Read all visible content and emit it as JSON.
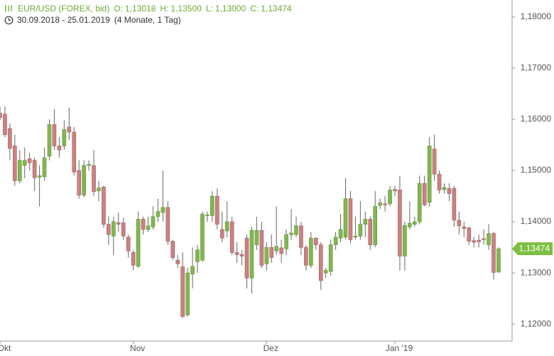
{
  "chart_data": {
    "type": "candlestick",
    "title": "EUR/USD (FOREX, bid)",
    "quote": [
      {
        "label": "O:",
        "value": "1,13018"
      },
      {
        "label": "H:",
        "value": "1,13500"
      },
      {
        "label": "L:",
        "value": "1,13000"
      },
      {
        "label": "C:",
        "value": "1,13474"
      }
    ],
    "period": "30.09.2018 - 25.01.2019",
    "duration": "(4 Monate, 1 Tag)",
    "last_value_label": "1,13474",
    "up_color": "#82b651",
    "down_color": "#c98282",
    "ylim": [
      1.1167,
      1.1833
    ],
    "yticks": [
      {
        "value": 1.12,
        "label": "1,12000"
      },
      {
        "value": 1.13,
        "label": "1,13000"
      },
      {
        "value": 1.14,
        "label": "1,14000"
      },
      {
        "value": 1.15,
        "label": "1,15000"
      },
      {
        "value": 1.16,
        "label": "1,16000"
      },
      {
        "value": 1.17,
        "label": "1,17000"
      },
      {
        "value": 1.18,
        "label": "1,18000"
      }
    ],
    "grid": false,
    "categories": [
      "Okt",
      null,
      null,
      null,
      null,
      null,
      null,
      null,
      null,
      null,
      null,
      null,
      null,
      null,
      null,
      null,
      null,
      null,
      null,
      null,
      null,
      null,
      null,
      null,
      null,
      null,
      null,
      "Nov",
      null,
      null,
      null,
      null,
      null,
      null,
      null,
      null,
      null,
      null,
      null,
      null,
      null,
      null,
      null,
      null,
      null,
      null,
      null,
      null,
      null,
      null,
      null,
      null,
      null,
      null,
      "Dez",
      null,
      null,
      null,
      null,
      null,
      null,
      null,
      null,
      null,
      null,
      null,
      null,
      null,
      null,
      null,
      null,
      null,
      null,
      null,
      null,
      null,
      null,
      null,
      null,
      null,
      "Jan '19",
      null,
      null,
      null,
      null,
      null,
      null,
      null,
      null,
      null,
      null,
      null,
      null,
      null,
      null,
      null,
      null,
      null,
      null,
      null,
      null,
      null
    ],
    "open": [
      1.1612,
      1.161,
      1.1582,
      1.1548,
      1.148,
      1.151,
      1.1523,
      1.152,
      1.1487,
      1.1488,
      1.1528,
      1.159,
      1.1548,
      1.1548,
      1.1585,
      1.1575,
      1.15,
      1.1452,
      1.151,
      1.151,
      1.146,
      1.1468,
      1.1395,
      1.1372,
      1.1398,
      1.1398,
      1.137,
      1.134,
      1.1313,
      1.1405,
      1.1385,
      1.139,
      1.141,
      1.1418,
      1.1428,
      1.1362,
      1.1325,
      1.1312,
      1.1218,
      1.1298,
      1.1322,
      1.1325,
      1.1412,
      1.1412,
      1.145,
      1.1385,
      1.1382,
      1.14,
      1.134,
      1.1336,
      1.1368,
      1.129,
      1.1355,
      1.1383,
      1.1318,
      1.135,
      1.1343,
      1.1349,
      1.1347,
      1.1375,
      1.1375,
      1.1392,
      1.135,
      1.1315,
      1.1368,
      1.1355,
      1.13,
      1.1303,
      1.1355,
      1.1368,
      1.137,
      1.1445,
      1.137,
      1.1372,
      1.1395,
      1.1405,
      1.1355,
      1.1432,
      1.1435,
      1.1435,
      1.1463,
      1.1462,
      1.1333,
      1.139,
      1.1395,
      1.14,
      1.1475,
      1.1438,
      1.1542,
      1.1493,
      1.1463,
      1.1465,
      1.1465,
      1.1403,
      1.139,
      1.1388,
      1.1363,
      1.1364,
      1.1367,
      1.1355,
      1.1377,
      1.13018
    ],
    "high": [
      1.1625,
      1.1625,
      1.1592,
      1.157,
      1.154,
      1.1545,
      1.1535,
      1.1525,
      1.151,
      1.1545,
      1.16,
      1.162,
      1.1565,
      1.1598,
      1.1623,
      1.1585,
      1.152,
      1.152,
      1.152,
      1.154,
      1.148,
      1.147,
      1.141,
      1.141,
      1.1418,
      1.1408,
      1.1375,
      1.1345,
      1.142,
      1.141,
      1.141,
      1.143,
      1.1445,
      1.15,
      1.144,
      1.1365,
      1.1335,
      1.134,
      1.131,
      1.135,
      1.1355,
      1.142,
      1.142,
      1.146,
      1.1465,
      1.142,
      1.144,
      1.141,
      1.136,
      1.1345,
      1.1375,
      1.139,
      1.141,
      1.14,
      1.136,
      1.1375,
      1.143,
      1.1365,
      1.1385,
      1.1425,
      1.141,
      1.14,
      1.1355,
      1.138,
      1.137,
      1.136,
      1.131,
      1.1365,
      1.138,
      1.1415,
      1.1485,
      1.146,
      1.141,
      1.144,
      1.142,
      1.141,
      1.146,
      1.1445,
      1.145,
      1.147,
      1.147,
      1.149,
      1.14,
      1.144,
      1.141,
      1.149,
      1.149,
      1.1565,
      1.157,
      1.15,
      1.1475,
      1.1475,
      1.147,
      1.142,
      1.14,
      1.139,
      1.137,
      1.1375,
      1.1385,
      1.1395,
      1.138,
      1.135
    ],
    "low": [
      1.1598,
      1.1565,
      1.152,
      1.147,
      1.1475,
      1.1485,
      1.15,
      1.146,
      1.143,
      1.148,
      1.152,
      1.154,
      1.1525,
      1.154,
      1.156,
      1.149,
      1.1445,
      1.1448,
      1.15,
      1.145,
      1.144,
      1.1388,
      1.1355,
      1.1335,
      1.138,
      1.1365,
      1.133,
      1.1305,
      1.131,
      1.1375,
      1.138,
      1.1385,
      1.14,
      1.14,
      1.1355,
      1.1325,
      1.131,
      1.1212,
      1.1215,
      1.127,
      1.13,
      1.1322,
      1.14,
      1.14,
      1.1385,
      1.136,
      1.137,
      1.1335,
      1.132,
      1.1315,
      1.127,
      1.126,
      1.1345,
      1.131,
      1.1305,
      1.132,
      1.1335,
      1.132,
      1.1335,
      1.1365,
      1.137,
      1.1335,
      1.1305,
      1.131,
      1.1345,
      1.1267,
      1.129,
      1.1295,
      1.1345,
      1.136,
      1.1365,
      1.1358,
      1.1365,
      1.1365,
      1.137,
      1.1345,
      1.135,
      1.1425,
      1.142,
      1.143,
      1.145,
      1.1305,
      1.1305,
      1.1385,
      1.139,
      1.1395,
      1.143,
      1.143,
      1.148,
      1.1455,
      1.1455,
      1.144,
      1.139,
      1.1375,
      1.137,
      1.1355,
      1.135,
      1.135,
      1.1355,
      1.1345,
      1.1287,
      1.13
    ],
    "close": [
      1.1603,
      1.157,
      1.1543,
      1.148,
      1.152,
      1.152,
      1.1515,
      1.1486,
      1.149,
      1.1525,
      1.159,
      1.1548,
      1.154,
      1.158,
      1.1575,
      1.1497,
      1.1452,
      1.151,
      1.1512,
      1.1459,
      1.1466,
      1.1395,
      1.1375,
      1.14,
      1.1395,
      1.1372,
      1.1343,
      1.1315,
      1.1405,
      1.1385,
      1.1392,
      1.141,
      1.142,
      1.1428,
      1.1362,
      1.133,
      1.1318,
      1.1215,
      1.13,
      1.1313,
      1.1345,
      1.1415,
      1.1413,
      1.145,
      1.1395,
      1.1368,
      1.14,
      1.134,
      1.1336,
      1.1333,
      1.129,
      1.1383,
      1.1383,
      1.1315,
      1.135,
      1.133,
      1.1352,
      1.1338,
      1.1375,
      1.1378,
      1.1392,
      1.135,
      1.1315,
      1.1368,
      1.1355,
      1.1285,
      1.1305,
      1.1355,
      1.137,
      1.1385,
      1.1445,
      1.1365,
      1.1372,
      1.1395,
      1.1405,
      1.1355,
      1.143,
      1.1437,
      1.1433,
      1.1462,
      1.146,
      1.1333,
      1.1393,
      1.1397,
      1.14,
      1.1475,
      1.1433,
      1.1548,
      1.1493,
      1.1462,
      1.1467,
      1.1455,
      1.1403,
      1.1392,
      1.1387,
      1.1362,
      1.136,
      1.1361,
      1.1365,
      1.1377,
      1.1301,
      1.13474
    ]
  }
}
